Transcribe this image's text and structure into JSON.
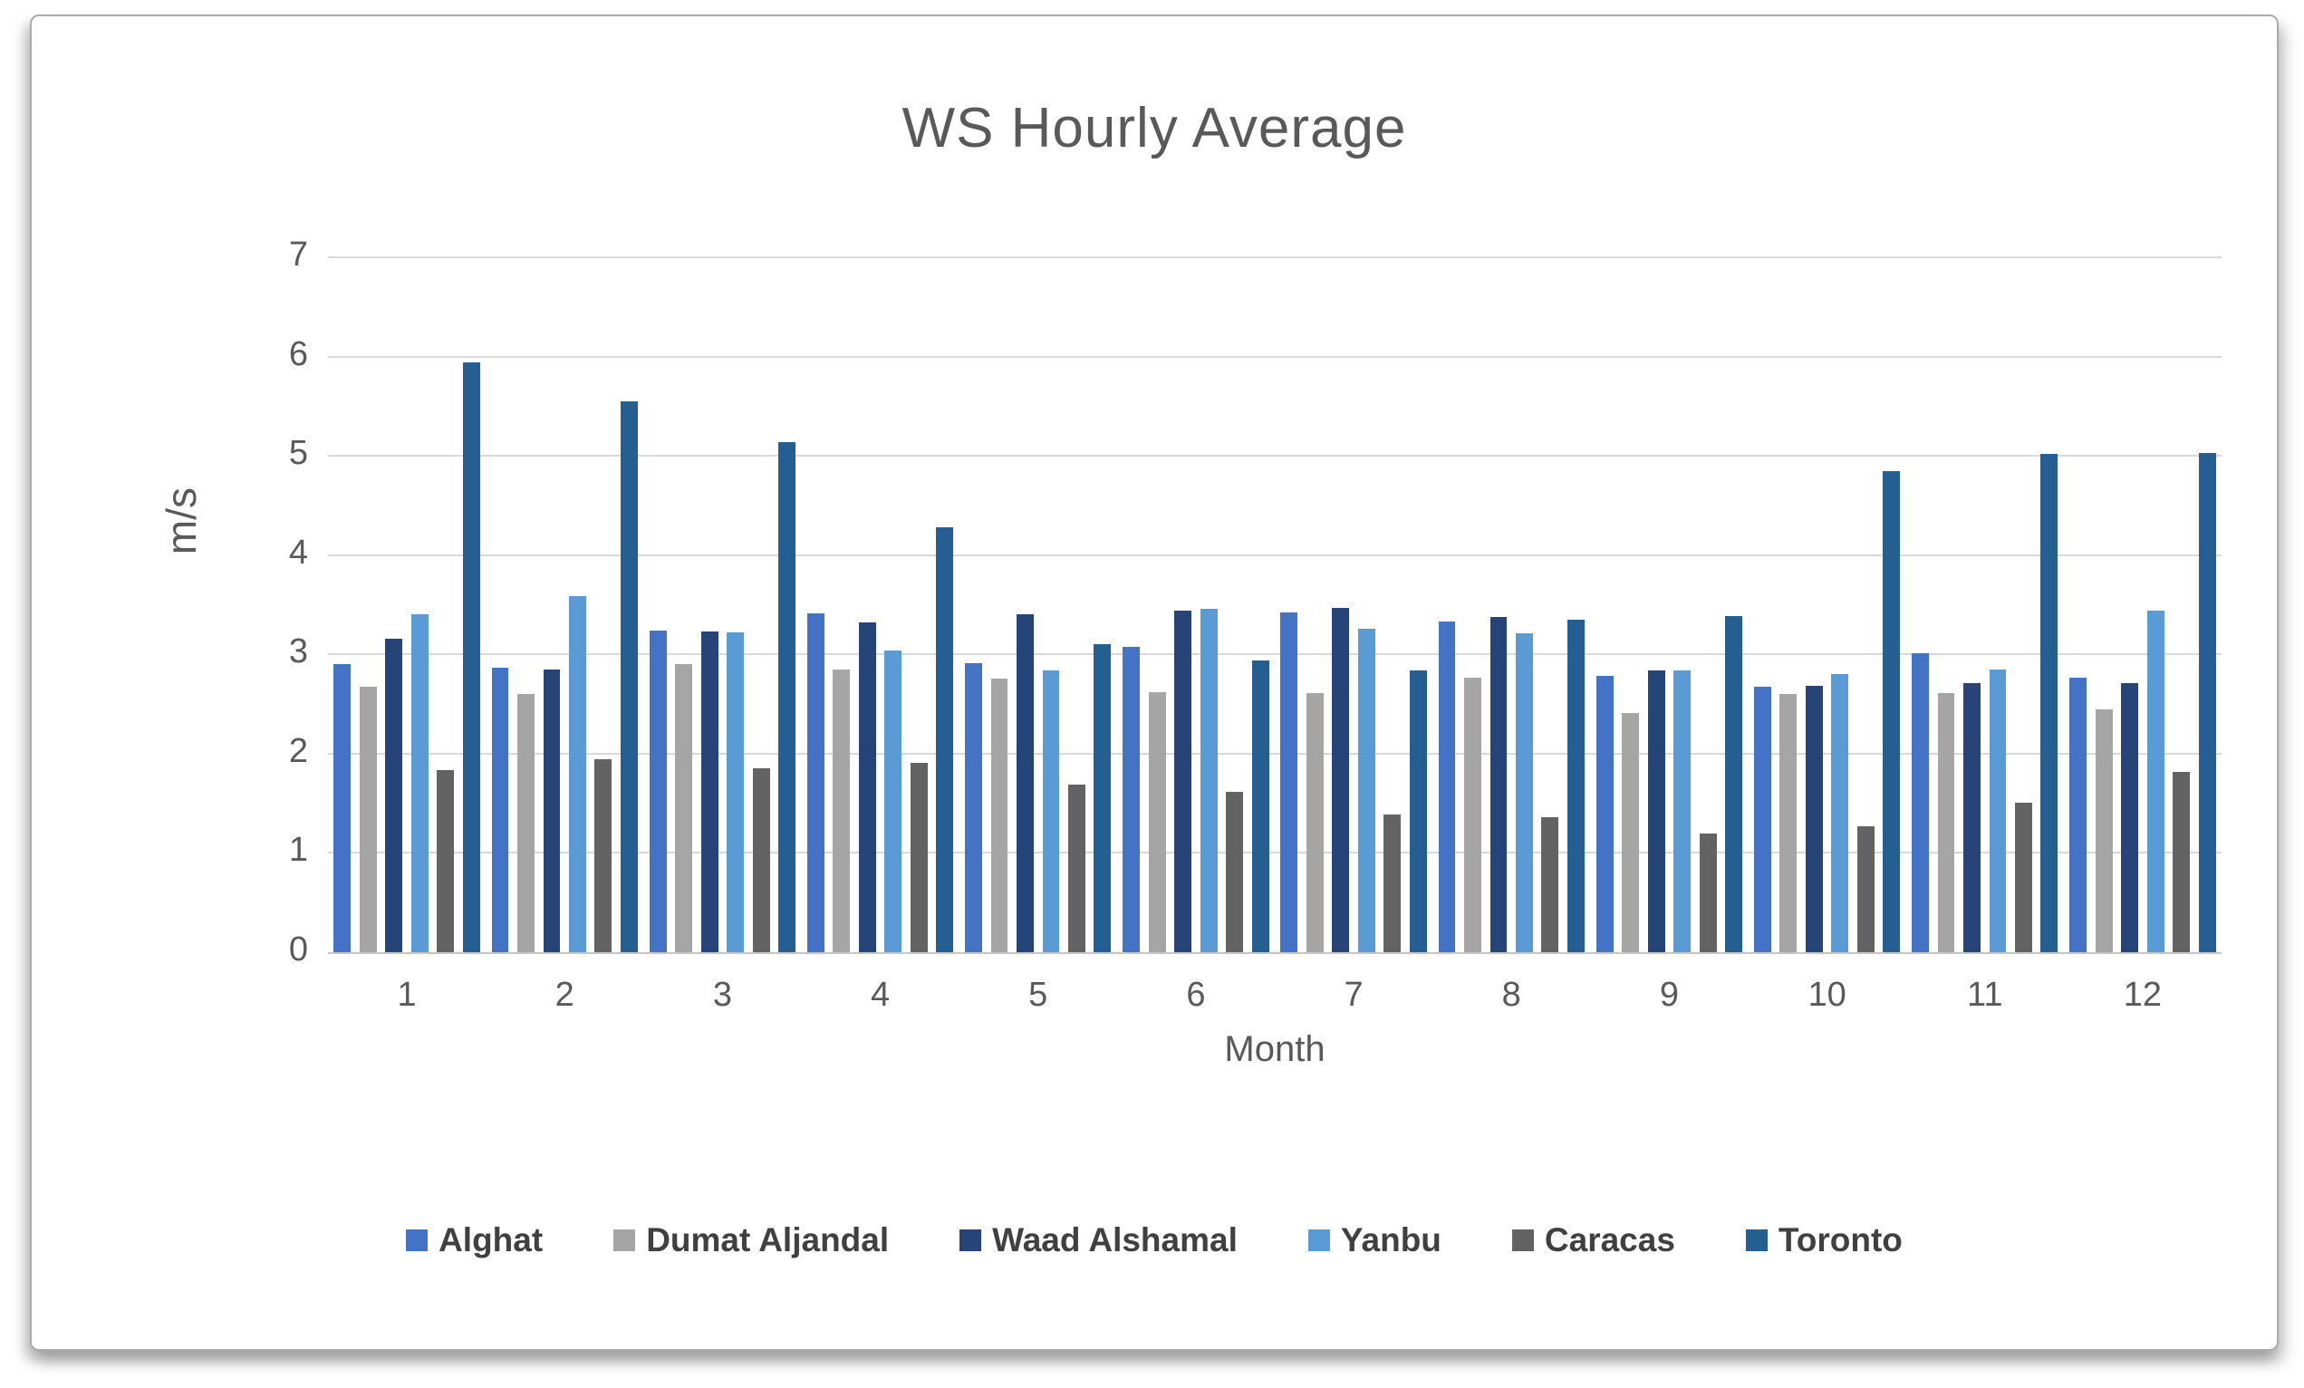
{
  "chart_data": {
    "type": "bar",
    "title": "WS Hourly Average",
    "xlabel": "Month",
    "ylabel": "m/s",
    "ylim": [
      0,
      7
    ],
    "ytick_step": 1,
    "ytick_labels": [
      "0",
      "1",
      "2",
      "3",
      "4",
      "5",
      "6",
      "7"
    ],
    "grid": true,
    "legend_position": "bottom",
    "categories": [
      "1",
      "2",
      "3",
      "4",
      "5",
      "6",
      "7",
      "8",
      "9",
      "10",
      "11",
      "12"
    ],
    "series": [
      {
        "name": "Alghat",
        "color": "#4472C4",
        "values": [
          2.9,
          2.87,
          3.24,
          3.41,
          2.91,
          3.08,
          3.42,
          3.33,
          2.78,
          2.67,
          3.01,
          2.77
        ]
      },
      {
        "name": "Dumat Aljandal",
        "color": "#A5A5A5",
        "values": [
          2.67,
          2.6,
          2.9,
          2.85,
          2.76,
          2.62,
          2.61,
          2.77,
          2.41,
          2.6,
          2.61,
          2.45
        ]
      },
      {
        "name": "Waad Alshamal",
        "color": "#264478",
        "values": [
          3.16,
          2.85,
          3.23,
          3.32,
          3.4,
          3.44,
          3.47,
          3.38,
          2.84,
          2.68,
          2.71,
          2.71
        ]
      },
      {
        "name": "Yanbu",
        "color": "#5B9BD5",
        "values": [
          3.4,
          3.59,
          3.22,
          3.04,
          2.84,
          3.46,
          3.26,
          3.21,
          2.84,
          2.8,
          2.85,
          3.44
        ]
      },
      {
        "name": "Caracas",
        "color": "#636363",
        "values": [
          1.83,
          1.94,
          1.85,
          1.91,
          1.69,
          1.62,
          1.39,
          1.36,
          1.2,
          1.27,
          1.51,
          1.82
        ]
      },
      {
        "name": "Toronto",
        "color": "#255E91",
        "values": [
          5.94,
          5.55,
          5.14,
          4.28,
          3.1,
          2.94,
          2.84,
          3.35,
          3.39,
          4.85,
          5.02,
          5.03
        ]
      }
    ]
  },
  "colors": {
    "title_text": "#595959",
    "axis_text": "#595959",
    "legend_text": "#404040",
    "gridline": "#D9D9D9",
    "card_background": "#FFFFFF"
  }
}
